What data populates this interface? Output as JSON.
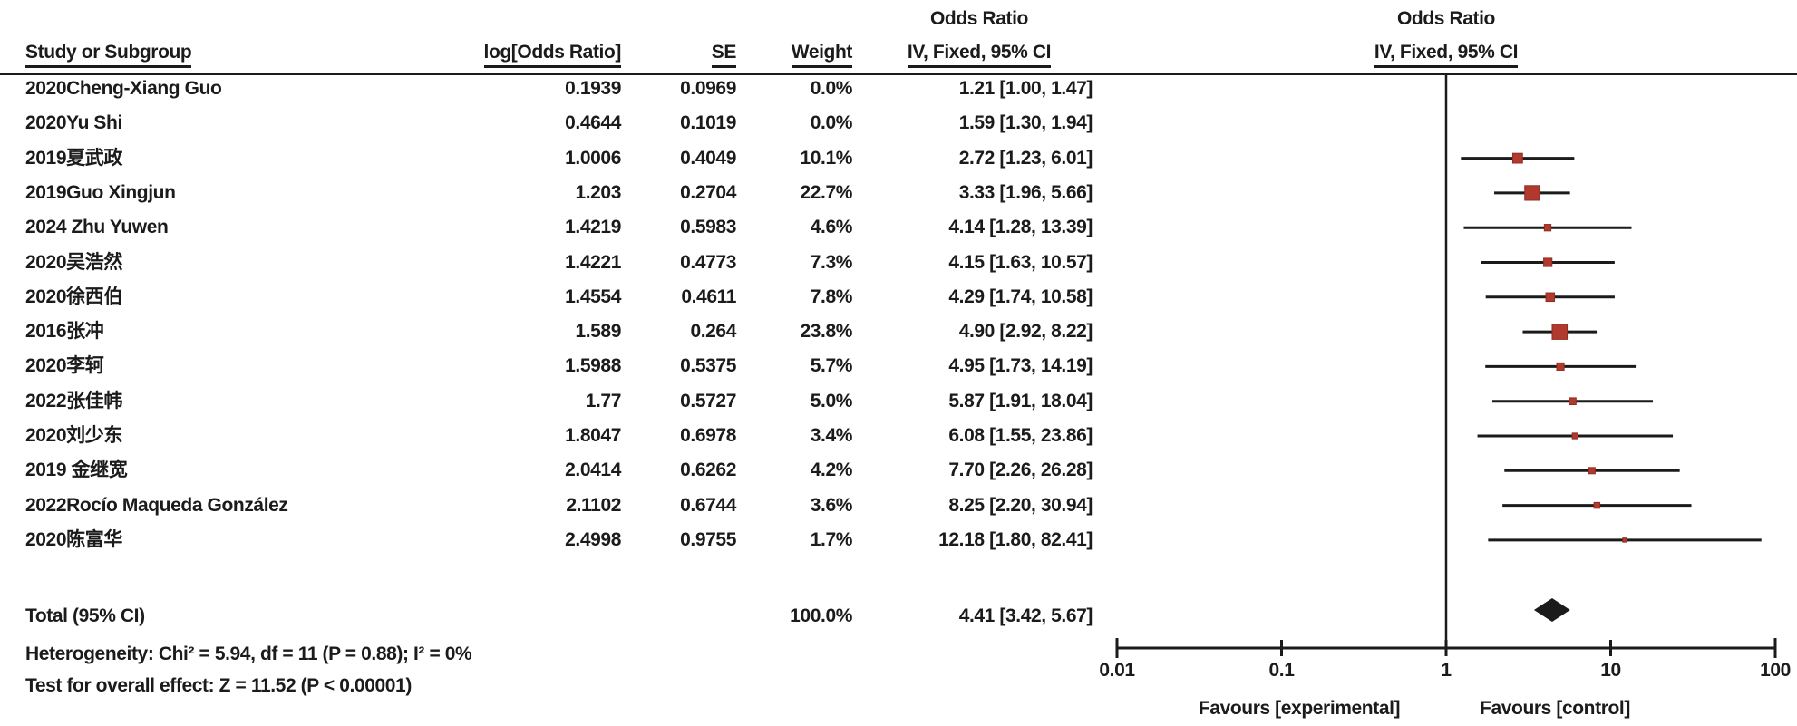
{
  "header": {
    "col_study": "Study or Subgroup",
    "col_log_or": "log[Odds Ratio]",
    "col_se": "SE",
    "col_weight": "Weight",
    "stats_col_title": "Odds Ratio",
    "stats_col_subtitle": "IV, Fixed, 95% CI",
    "plot_col_title": "Odds Ratio",
    "plot_col_subtitle": "IV, Fixed, 95% CI"
  },
  "footnotes": {
    "heterogeneity": "Heterogeneity: Chi² = 5.94, df = 11 (P = 0.88); I² = 0%",
    "overall_effect": "Test for overall effect: Z = 11.52 (P < 0.00001)"
  },
  "colors": {
    "marker": "#b2392e",
    "marker_edge": "#8e2d23",
    "diamond": "#1b1b1b",
    "line": "#1b1b1b"
  },
  "chart_data": {
    "type": "scatter",
    "subtype": "forest_plot_meta_analysis",
    "effect_measure": "Odds Ratio",
    "model": "IV, Fixed, 95% CI",
    "x_scale": "log10",
    "x_ticks": [
      "0.01",
      "0.1",
      "1",
      "10",
      "100"
    ],
    "x_tick_values": [
      0.01,
      0.1,
      1,
      10,
      100
    ],
    "x_range": [
      0.01,
      100
    ],
    "null_line": 1,
    "favours_left": "Favours [experimental]",
    "favours_right": "Favours [control]",
    "studies": [
      {
        "name": "2020Cheng-Xiang Guo",
        "log_or": "0.1939",
        "se": "0.0969",
        "weight": "0.0%",
        "ci_text": "1.21 [1.00, 1.47]",
        "or": 1.21,
        "lo": 1.0,
        "hi": 1.47,
        "plotted": false
      },
      {
        "name": "2020Yu Shi",
        "log_or": "0.4644",
        "se": "0.1019",
        "weight": "0.0%",
        "ci_text": "1.59 [1.30, 1.94]",
        "or": 1.59,
        "lo": 1.3,
        "hi": 1.94,
        "plotted": false
      },
      {
        "name": "2019夏武政",
        "log_or": "1.0006",
        "se": "0.4049",
        "weight": "10.1%",
        "ci_text": "2.72 [1.23, 6.01]",
        "or": 2.72,
        "lo": 1.23,
        "hi": 6.01,
        "plotted": true
      },
      {
        "name": "2019Guo Xingjun",
        "log_or": "1.203",
        "se": "0.2704",
        "weight": "22.7%",
        "ci_text": "3.33 [1.96, 5.66]",
        "or": 3.33,
        "lo": 1.96,
        "hi": 5.66,
        "plotted": true
      },
      {
        "name": "2024 Zhu Yuwen",
        "log_or": "1.4219",
        "se": "0.5983",
        "weight": "4.6%",
        "ci_text": "4.14 [1.28, 13.39]",
        "or": 4.14,
        "lo": 1.28,
        "hi": 13.39,
        "plotted": true
      },
      {
        "name": "2020吴浩然",
        "log_or": "1.4221",
        "se": "0.4773",
        "weight": "7.3%",
        "ci_text": "4.15 [1.63, 10.57]",
        "or": 4.15,
        "lo": 1.63,
        "hi": 10.57,
        "plotted": true
      },
      {
        "name": "2020徐西伯",
        "log_or": "1.4554",
        "se": "0.4611",
        "weight": "7.8%",
        "ci_text": "4.29 [1.74, 10.58]",
        "or": 4.29,
        "lo": 1.74,
        "hi": 10.58,
        "plotted": true
      },
      {
        "name": "2016张冲",
        "log_or": "1.589",
        "se": "0.264",
        "weight": "23.8%",
        "ci_text": "4.90 [2.92, 8.22]",
        "or": 4.9,
        "lo": 2.92,
        "hi": 8.22,
        "plotted": true
      },
      {
        "name": "2020李轲",
        "log_or": "1.5988",
        "se": "0.5375",
        "weight": "5.7%",
        "ci_text": "4.95 [1.73, 14.19]",
        "or": 4.95,
        "lo": 1.73,
        "hi": 14.19,
        "plotted": true
      },
      {
        "name": "2022张佳帏",
        "log_or": "1.77",
        "se": "0.5727",
        "weight": "5.0%",
        "ci_text": "5.87 [1.91, 18.04]",
        "or": 5.87,
        "lo": 1.91,
        "hi": 18.04,
        "plotted": true
      },
      {
        "name": "2020刘少东",
        "log_or": "1.8047",
        "se": "0.6978",
        "weight": "3.4%",
        "ci_text": "6.08 [1.55, 23.86]",
        "or": 6.08,
        "lo": 1.55,
        "hi": 23.86,
        "plotted": true
      },
      {
        "name": "2019 金继宽",
        "log_or": "2.0414",
        "se": "0.6262",
        "weight": "4.2%",
        "ci_text": "7.70 [2.26, 26.28]",
        "or": 7.7,
        "lo": 2.26,
        "hi": 26.28,
        "plotted": true
      },
      {
        "name": "2022Rocío Maqueda González",
        "log_or": "2.1102",
        "se": "0.6744",
        "weight": "3.6%",
        "ci_text": "8.25 [2.20, 30.94]",
        "or": 8.25,
        "lo": 2.2,
        "hi": 30.94,
        "plotted": true
      },
      {
        "name": "2020陈富华",
        "log_or": "2.4998",
        "se": "0.9755",
        "weight": "1.7%",
        "ci_text": "12.18 [1.80, 82.41]",
        "or": 12.18,
        "lo": 1.8,
        "hi": 82.41,
        "plotted": true
      }
    ],
    "total": {
      "label": "Total (95% CI)",
      "weight": "100.0%",
      "ci_text": "4.41 [3.42, 5.67]",
      "or": 4.41,
      "lo": 3.42,
      "hi": 5.67
    }
  }
}
